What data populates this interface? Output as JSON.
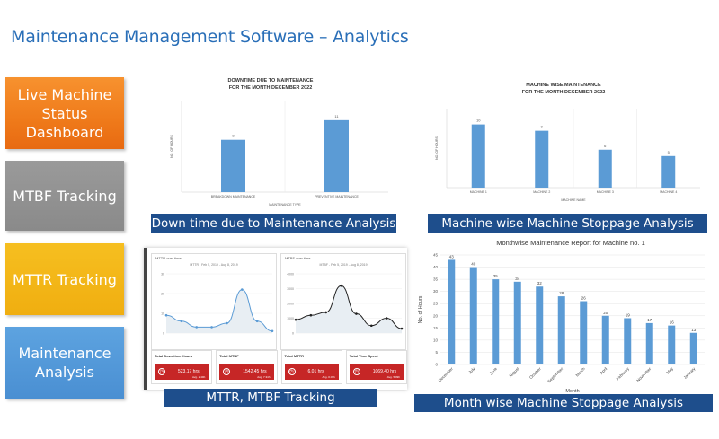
{
  "title": "Maintenance Management Software – Analytics",
  "sidebar": {
    "items": [
      {
        "label": "Live Machine Status Dashboard",
        "color": "#ef7a1a"
      },
      {
        "label": "MTBF Tracking",
        "color": "#8a8a8a"
      },
      {
        "label": "MTTR Tracking",
        "color": "#f0ae10"
      },
      {
        "label": "Maintenance Analysis",
        "color": "#4a8fd2"
      }
    ]
  },
  "captions": {
    "downtime": "Down time due to Maintenance Analysis",
    "machine_wise": "Machine wise Machine Stoppage Analysis",
    "mttr_mtbf": "MTTR, MTBF Tracking",
    "month_wise": "Month wise Machine Stoppage Analysis"
  },
  "chart_data": [
    {
      "type": "bar",
      "title": "DOWNTIME DUE TO MAINTENANCE",
      "subtitle": "FOR THE MONTH DECEMBER 2022",
      "categories": [
        "BREAKDOWN MAINTENANCE",
        "PREVENTIVE MAINTENANCE"
      ],
      "values": [
        8,
        11
      ],
      "xlabel": "MAINTENANCE TYPE",
      "ylabel": "NO. OF HOURS",
      "ylim": [
        0,
        14
      ],
      "color": "#5b9bd5"
    },
    {
      "type": "bar",
      "title": "MACHINE WISE MAINTENANCE",
      "subtitle": "FOR THE MONTH DECEMBER 2022",
      "categories": [
        "MACHINE 1",
        "MACHINE 2",
        "MACHINE 3",
        "MACHINE 4"
      ],
      "values": [
        10,
        9,
        6,
        5
      ],
      "xlabel": "MACHINE NAME",
      "ylabel": "NO. OF HOURS",
      "ylim": [
        0,
        12.5
      ],
      "color": "#5b9bd5"
    },
    {
      "type": "line",
      "title": "MTTR over time",
      "subtitle": "MTTR - Feb 5, 2019 - Aug 8, 2019",
      "y": [
        9,
        6,
        3,
        3,
        5,
        22,
        6,
        1
      ],
      "ylim": [
        0,
        30
      ],
      "yticks": [
        0,
        10,
        20,
        30
      ]
    },
    {
      "type": "line",
      "title": "MTBF over time",
      "subtitle": "MTBF - Feb 5, 2019 - Aug 8, 2019",
      "y": [
        900,
        1200,
        1400,
        3200,
        1300,
        500,
        1000,
        300
      ],
      "ylim": [
        0,
        4000
      ],
      "yticks": [
        0,
        1000,
        2000,
        3000,
        4000
      ]
    },
    {
      "type": "bar",
      "title": "Monthwise Maintenance Report for Machine no. 1",
      "categories": [
        "December",
        "July",
        "June",
        "August",
        "October",
        "September",
        "March",
        "April",
        "February",
        "November",
        "May",
        "January"
      ],
      "values": [
        43,
        40,
        35,
        34,
        32,
        28,
        26,
        20,
        19,
        17,
        16,
        13
      ],
      "xlabel": "Month",
      "ylabel": "No. of Hours",
      "ylim": [
        0,
        45
      ],
      "yticks": [
        0,
        5,
        10,
        15,
        20,
        25,
        30,
        35,
        40,
        45
      ],
      "color": "#5b9bd5"
    }
  ],
  "kpis": [
    {
      "label": "Total Downtime Hours",
      "value": "523.17 hrs",
      "sub": "Avg. 2.49h"
    },
    {
      "label": "Total MTBF",
      "value": "1542.45 hrs",
      "sub": "Avg. 7.34h"
    },
    {
      "label": "Total MTTR",
      "value": "6.01 hrs",
      "sub": "Avg. 0.03h"
    },
    {
      "label": "Total Time Spent",
      "value": "1069.40 hrs",
      "sub": "Avg. 5.09h"
    }
  ]
}
